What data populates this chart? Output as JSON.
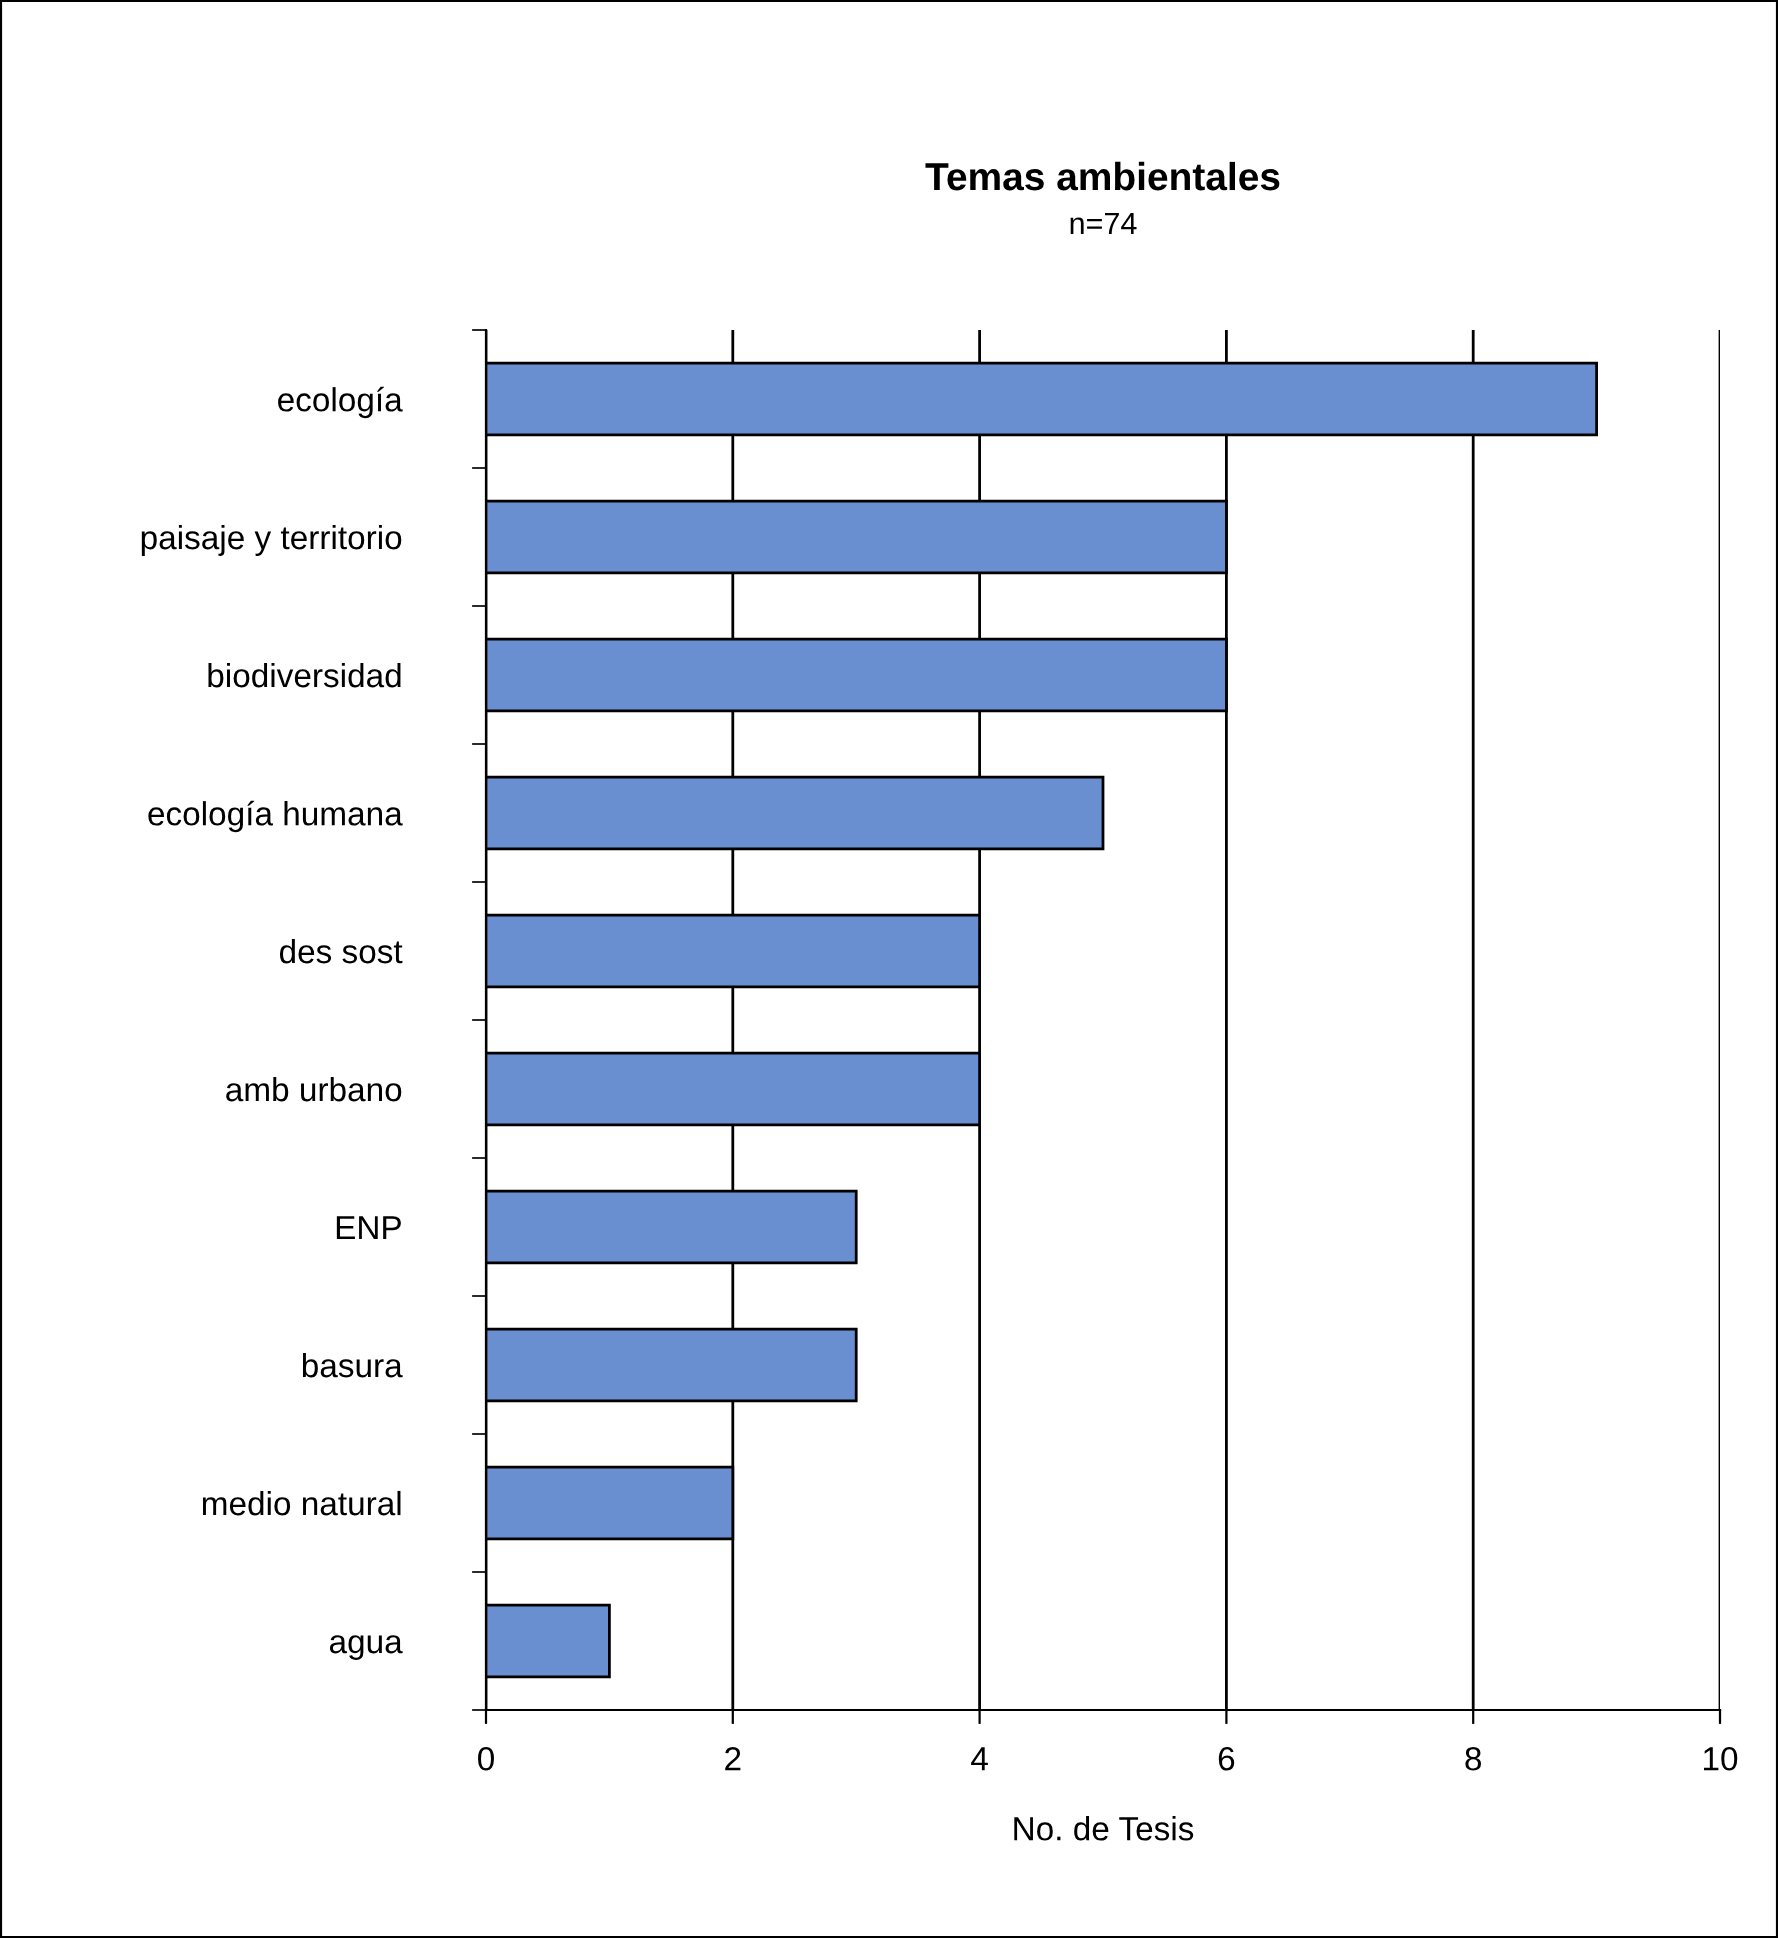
{
  "chart_data": {
    "type": "bar",
    "orientation": "horizontal",
    "title": "Temas ambientales",
    "subtitle": "n=74",
    "xlabel": "No. de Tesis",
    "categories": [
      "ecología",
      "paisaje y territorio",
      "biodiversidad",
      "ecología humana",
      "des sost",
      "amb urbano",
      "ENP",
      "basura",
      "medio natural",
      "agua"
    ],
    "values": [
      9,
      6,
      6,
      5,
      4,
      4,
      3,
      3,
      2,
      1
    ],
    "color": "#6a8fd0",
    "xlim": [
      0,
      10
    ],
    "xticks": [
      0,
      2,
      4,
      6,
      8,
      10
    ],
    "grid": "x",
    "legend": false
  }
}
